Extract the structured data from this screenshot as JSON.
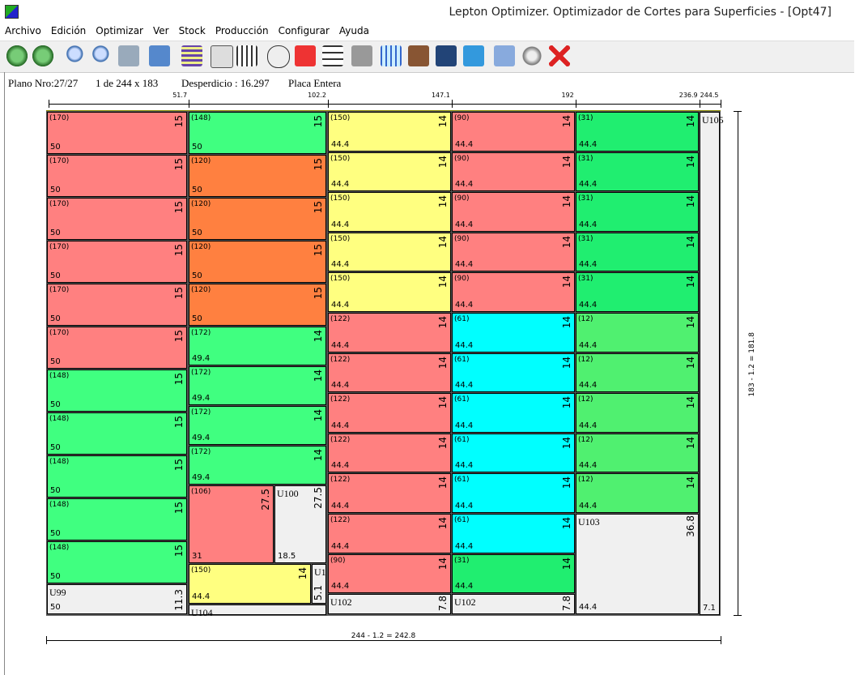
{
  "window": {
    "title": "Lepton Optimizer. Optimizador de Cortes para Superficies - [Opt47]"
  },
  "menu": [
    "Archivo",
    "Edición",
    "Optimizar",
    "Ver",
    "Stock",
    "Producción",
    "Configurar",
    "Ayuda"
  ],
  "status": {
    "plan": "Plano Nro:27/27",
    "sheet": "1 de 244 x 183",
    "waste": "Desperdicio : 16.297",
    "mode": "Placa Entera"
  },
  "ruler": {
    "top": [
      51.7,
      102.2,
      147.1,
      192,
      236.9,
      244.5
    ],
    "right": "183 - 1.2 = 181.8",
    "bottom": "244 - 1.2 = 242.8"
  },
  "board": {
    "columns": [
      {
        "items": [
          {
            "id": "(170)",
            "w": 50,
            "h": 15,
            "color": "#ff8080"
          },
          {
            "id": "(170)",
            "w": 50,
            "h": 15,
            "color": "#ff8080"
          },
          {
            "id": "(170)",
            "w": 50,
            "h": 15,
            "color": "#ff8080"
          },
          {
            "id": "(170)",
            "w": 50,
            "h": 15,
            "color": "#ff8080"
          },
          {
            "id": "(170)",
            "w": 50,
            "h": 15,
            "color": "#ff8080"
          },
          {
            "id": "(170)",
            "w": 50,
            "h": 15,
            "color": "#ff8080"
          },
          {
            "id": "(148)",
            "w": 50,
            "h": 15,
            "color": "#40ff80"
          },
          {
            "id": "(148)",
            "w": 50,
            "h": 15,
            "color": "#40ff80"
          },
          {
            "id": "(148)",
            "w": 50,
            "h": 15,
            "color": "#40ff80"
          },
          {
            "id": "(148)",
            "w": 50,
            "h": 15,
            "color": "#40ff80"
          },
          {
            "id": "(148)",
            "w": 50,
            "h": 15,
            "color": "#40ff80"
          },
          {
            "id": "U99",
            "w": 50,
            "h": 11.3
          }
        ]
      },
      {
        "items": [
          {
            "id": "(148)",
            "w": 50,
            "h": 15,
            "color": "#40ff80"
          },
          {
            "id": "(120)",
            "w": 50,
            "h": 15,
            "color": "#ff8040"
          },
          {
            "id": "(120)",
            "w": 50,
            "h": 15,
            "color": "#ff8040"
          },
          {
            "id": "(120)",
            "w": 50,
            "h": 15,
            "color": "#ff8040"
          },
          {
            "id": "(120)",
            "w": 50,
            "h": 15,
            "color": "#ff8040"
          },
          {
            "id": "(172)",
            "w": 49.4,
            "h": 14,
            "color": "#40ff80"
          },
          {
            "id": "(172)",
            "w": 49.4,
            "h": 14,
            "color": "#40ff80"
          },
          {
            "id": "(172)",
            "w": 49.4,
            "h": 14,
            "color": "#40ff80"
          },
          {
            "id": "(172)",
            "w": 49.4,
            "h": 14,
            "color": "#40ff80"
          },
          {
            "id": "(106)",
            "w": 31,
            "h": 27.5,
            "color": "#ff8080"
          },
          {
            "id": "U100",
            "w": 18.5,
            "h": 27.5
          },
          {
            "id": "(150)",
            "w": 44.4,
            "h": 14,
            "color": "#ffff80"
          },
          {
            "id": "U1",
            "h": 5.1
          },
          {
            "id": "U104"
          }
        ]
      },
      {
        "items": [
          {
            "id": "(150)",
            "w": 44.4,
            "h": 14,
            "color": "#ffff80"
          },
          {
            "id": "(150)",
            "w": 44.4,
            "h": 14,
            "color": "#ffff80"
          },
          {
            "id": "(150)",
            "w": 44.4,
            "h": 14,
            "color": "#ffff80"
          },
          {
            "id": "(150)",
            "w": 44.4,
            "h": 14,
            "color": "#ffff80"
          },
          {
            "id": "(150)",
            "w": 44.4,
            "h": 14,
            "color": "#ffff80"
          },
          {
            "id": "(122)",
            "w": 44.4,
            "h": 14,
            "color": "#ff8080"
          },
          {
            "id": "(122)",
            "w": 44.4,
            "h": 14,
            "color": "#ff8080"
          },
          {
            "id": "(122)",
            "w": 44.4,
            "h": 14,
            "color": "#ff8080"
          },
          {
            "id": "(122)",
            "w": 44.4,
            "h": 14,
            "color": "#ff8080"
          },
          {
            "id": "(122)",
            "w": 44.4,
            "h": 14,
            "color": "#ff8080"
          },
          {
            "id": "(122)",
            "w": 44.4,
            "h": 14,
            "color": "#ff8080"
          },
          {
            "id": "(90)",
            "w": 44.4,
            "h": 14,
            "color": "#ff8080"
          },
          {
            "id": "U102",
            "h": 7.8
          }
        ]
      },
      {
        "items": [
          {
            "id": "(90)",
            "w": 44.4,
            "h": 14,
            "color": "#ff8080"
          },
          {
            "id": "(90)",
            "w": 44.4,
            "h": 14,
            "color": "#ff8080"
          },
          {
            "id": "(90)",
            "w": 44.4,
            "h": 14,
            "color": "#ff8080"
          },
          {
            "id": "(90)",
            "w": 44.4,
            "h": 14,
            "color": "#ff8080"
          },
          {
            "id": "(90)",
            "w": 44.4,
            "h": 14,
            "color": "#ff8080"
          },
          {
            "id": "(61)",
            "w": 44.4,
            "h": 14,
            "color": "#00ffff"
          },
          {
            "id": "(61)",
            "w": 44.4,
            "h": 14,
            "color": "#00ffff"
          },
          {
            "id": "(61)",
            "w": 44.4,
            "h": 14,
            "color": "#00ffff"
          },
          {
            "id": "(61)",
            "w": 44.4,
            "h": 14,
            "color": "#00ffff"
          },
          {
            "id": "(61)",
            "w": 44.4,
            "h": 14,
            "color": "#00ffff"
          },
          {
            "id": "(61)",
            "w": 44.4,
            "h": 14,
            "color": "#00ffff"
          },
          {
            "id": "(31)",
            "w": 44.4,
            "h": 14,
            "color": "#20ee70"
          },
          {
            "id": "U102",
            "h": 7.8
          }
        ]
      },
      {
        "items": [
          {
            "id": "(31)",
            "w": 44.4,
            "h": 14,
            "color": "#20ee70"
          },
          {
            "id": "(31)",
            "w": 44.4,
            "h": 14,
            "color": "#20ee70"
          },
          {
            "id": "(31)",
            "w": 44.4,
            "h": 14,
            "color": "#20ee70"
          },
          {
            "id": "(31)",
            "w": 44.4,
            "h": 14,
            "color": "#20ee70"
          },
          {
            "id": "(31)",
            "w": 44.4,
            "h": 14,
            "color": "#20ee70"
          },
          {
            "id": "(12)",
            "w": 44.4,
            "h": 14,
            "color": "#50f070"
          },
          {
            "id": "(12)",
            "w": 44.4,
            "h": 14,
            "color": "#50f070"
          },
          {
            "id": "(12)",
            "w": 44.4,
            "h": 14,
            "color": "#50f070"
          },
          {
            "id": "(12)",
            "w": 44.4,
            "h": 14,
            "color": "#50f070"
          },
          {
            "id": "(12)",
            "w": 44.4,
            "h": 14,
            "color": "#50f070"
          },
          {
            "id": "U103",
            "w": 44.4,
            "h": 36.8
          }
        ]
      },
      {
        "items": [
          {
            "id": "U105",
            "w": 7.1
          }
        ]
      }
    ]
  }
}
